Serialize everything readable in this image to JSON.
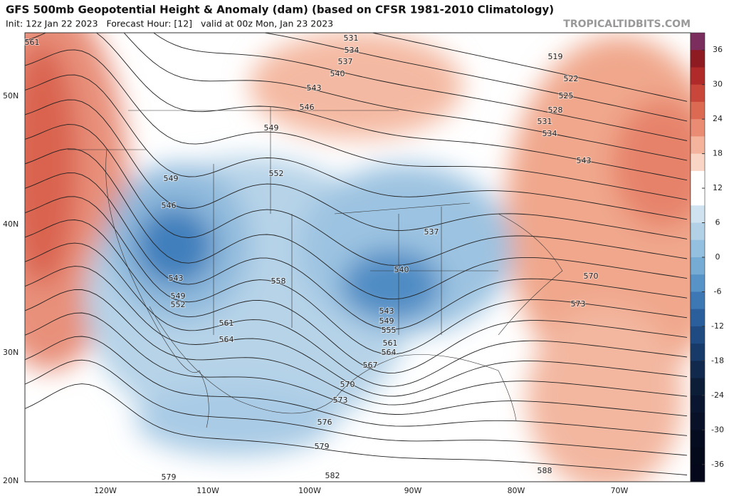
{
  "header": {
    "title": "GFS 500mb Geopotential Height & Anomaly (dam) (based on CFSR 1981-2010 Climatology)",
    "subtitle": "Init: 12z Jan 22 2023   Forecast Hour: [12]   valid at 00z Mon, Jan 23 2023",
    "watermark": "TROPICALTIDBITS.COM"
  },
  "map": {
    "lat_labels": [
      "50N",
      "40N",
      "30N",
      "20N"
    ],
    "lon_labels": [
      "120W",
      "110W",
      "100W",
      "90W",
      "80W",
      "70W"
    ],
    "contour_labels": [
      "561",
      "531",
      "534",
      "537",
      "540",
      "543",
      "546",
      "549",
      "552",
      "549",
      "546",
      "543",
      "549",
      "552",
      "558",
      "561",
      "564",
      "540",
      "537",
      "543",
      "549",
      "555",
      "561",
      "564",
      "567",
      "570",
      "573",
      "576",
      "579",
      "582",
      "579",
      "588",
      "570",
      "573",
      "543",
      "534",
      "531",
      "528",
      "525",
      "522",
      "519"
    ],
    "colorbar": {
      "ticks": [
        36,
        30,
        24,
        18,
        12,
        6,
        0,
        -6,
        -12,
        -18,
        -24,
        -30,
        -36
      ]
    }
  }
}
